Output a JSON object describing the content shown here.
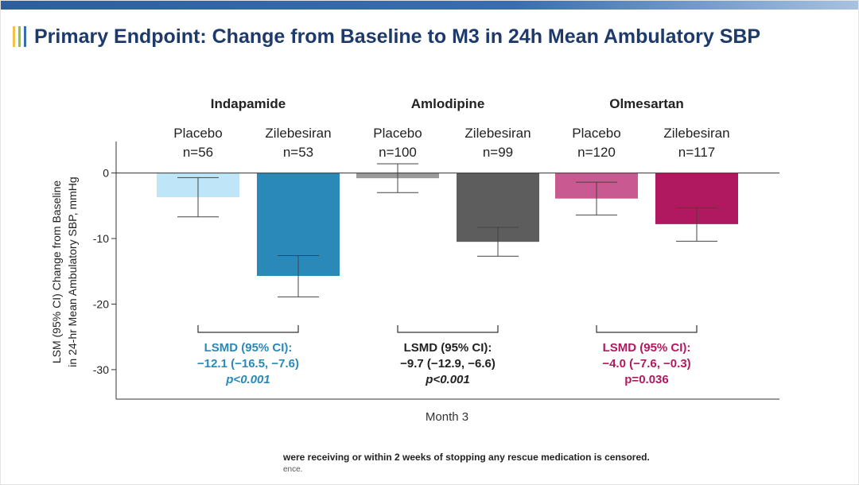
{
  "title": "Primary Endpoint: Change from Baseline to M3 in 24h Mean Ambulatory SBP",
  "footnote": {
    "text": "were receiving or within 2 weeks of stopping any rescue medication is censored.",
    "text2": "ence."
  },
  "colors": {
    "title": "#1d3a6b",
    "accent_1": "#f2c14e",
    "accent_2": "#8cc63f",
    "accent_3": "#3a6db0",
    "indapamide_placebo": "#bfe6f8",
    "indapamide_zilebesiran": "#2a89b8",
    "amlodipine_placebo": "#9a9a9a",
    "amlodipine_zilebesiran": "#5d5d5d",
    "olmesartan_placebo": "#c95a91",
    "olmesartan_zilebesiran": "#b0195f",
    "indapamide_text": "#2a89b8",
    "amlodipine_text": "#222222",
    "olmesartan_text": "#b0195f"
  },
  "chart_data": {
    "type": "bar",
    "title": "Primary Endpoint: Change from Baseline to M3 in 24h Mean Ambulatory SBP",
    "xlabel": "Month 3",
    "ylabel_line1": "LSM (95% CI) Change from Baseline",
    "ylabel_line2": "in 24-hr Mean Ambulatory SBP, mmHg",
    "ylim": [
      -34.5,
      4.8
    ],
    "yticks": [
      0,
      -10,
      -20,
      -30
    ],
    "ytick_labels": [
      "0",
      "-10",
      "-20",
      "-30"
    ],
    "groups": [
      {
        "name": "Indapamide",
        "bars": [
          {
            "label": "Placebo",
            "n": "n=56",
            "value": -3.7,
            "ci_low": -6.7,
            "ci_high": -0.7
          },
          {
            "label": "Zilebesiran",
            "n": "n=53",
            "value": -15.7,
            "ci_low": -18.9,
            "ci_high": -12.6
          }
        ],
        "lsmd": {
          "line1": "LSMD (95% CI):",
          "line2": "−12.1 (−16.5, −7.6)",
          "line3": "p<0.001"
        }
      },
      {
        "name": "Amlodipine",
        "bars": [
          {
            "label": "Placebo",
            "n": "n=100",
            "value": -0.8,
            "ci_low": -3.0,
            "ci_high": 1.4
          },
          {
            "label": "Zilebesiran",
            "n": "n=99",
            "value": -10.5,
            "ci_low": -12.7,
            "ci_high": -8.3
          }
        ],
        "lsmd": {
          "line1": "LSMD (95% CI):",
          "line2": "−9.7 (−12.9, −6.6)",
          "line3": "p<0.001"
        }
      },
      {
        "name": "Olmesartan",
        "bars": [
          {
            "label": "Placebo",
            "n": "n=120",
            "value": -3.9,
            "ci_low": -6.4,
            "ci_high": -1.4
          },
          {
            "label": "Zilebesiran",
            "n": "n=117",
            "value": -7.8,
            "ci_low": -10.4,
            "ci_high": -5.3
          }
        ],
        "lsmd": {
          "line1": "LSMD (95% CI):",
          "line2": "−4.0 (−7.6, −0.3)",
          "line3": "p=0.036"
        }
      }
    ]
  }
}
